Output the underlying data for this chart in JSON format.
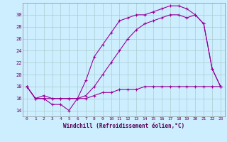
{
  "xlabel": "Windchill (Refroidissement éolien,°C)",
  "bg_color": "#cceeff",
  "line_color": "#990099",
  "grid_color": "#aacccc",
  "hours": [
    0,
    1,
    2,
    3,
    4,
    5,
    6,
    7,
    8,
    9,
    10,
    11,
    12,
    13,
    14,
    15,
    16,
    17,
    18,
    19,
    20,
    21,
    22,
    23
  ],
  "line1": [
    18,
    16,
    16,
    15,
    15,
    14,
    16,
    19,
    23,
    25,
    27,
    29,
    29.5,
    30,
    30,
    30.5,
    31,
    31.5,
    31.5,
    31,
    30,
    28.5,
    21,
    18
  ],
  "line2": [
    18,
    16,
    16.5,
    16,
    16,
    16,
    16,
    16.5,
    18,
    20,
    22,
    24,
    26,
    27.5,
    28.5,
    29,
    29.5,
    30,
    30,
    29.5,
    30,
    28.5,
    21,
    18
  ],
  "line3": [
    18,
    16,
    16,
    16,
    16,
    16,
    16,
    16,
    16.5,
    17,
    17,
    17.5,
    17.5,
    17.5,
    18,
    18,
    18,
    18,
    18,
    18,
    18,
    18,
    18,
    18
  ],
  "yticks": [
    14,
    16,
    18,
    20,
    22,
    24,
    26,
    28,
    30
  ],
  "ylim": [
    13,
    32
  ],
  "xlim": [
    -0.5,
    23.5
  ]
}
